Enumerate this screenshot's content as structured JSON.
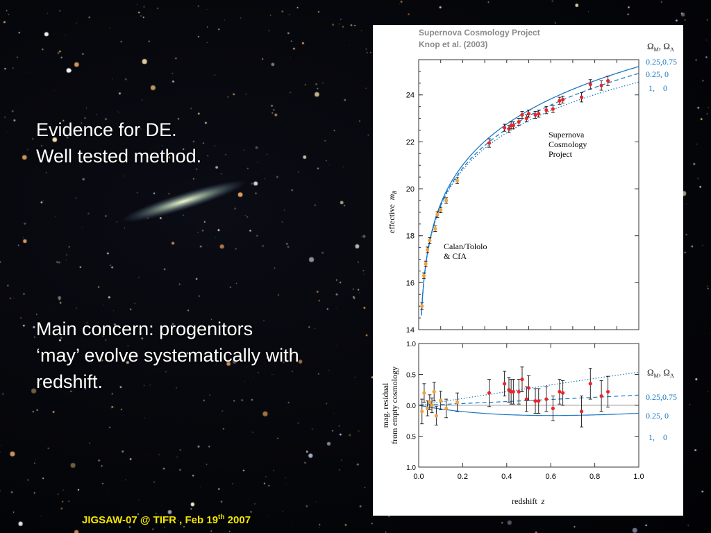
{
  "slide": {
    "text_block_1": [
      "Evidence for DE.",
      "Well tested method."
    ],
    "text_block_2": [
      "Main concern: progenitors",
      "‘may’ evolve systematically with",
      "redshift."
    ],
    "footer_main": "JIGSAW-07 @ TIFR , Feb 19",
    "footer_sup": "th",
    "footer_year": " 2007"
  },
  "figure": {
    "header_line1": "Supernova Cosmology Project",
    "header_line2": "Knop et al. (2003)",
    "colors": {
      "curve": "#1a78c2",
      "sn_point": "#e8262a",
      "low_z_point": "#f2a23a",
      "legend_text": "#1a78c2",
      "header_text": "#8a8a8a"
    }
  },
  "chart_data": [
    {
      "type": "scatter",
      "title": "",
      "xlabel": "",
      "ylabel": "effective m_B",
      "ylabel_main": "effective",
      "ylabel_sym": "m",
      "ylabel_sub": "B",
      "xlim": [
        0,
        1.0
      ],
      "ylim": [
        14,
        25.5
      ],
      "yticks": [
        14,
        16,
        18,
        20,
        22,
        24
      ],
      "legend_title_main": "Ω",
      "legend_title_sub1": "M",
      "legend_title_sep": ",  Ω",
      "legend_title_sub2": "Λ",
      "annotation_scp": [
        "Supernova",
        "Cosmology",
        "Project"
      ],
      "annotation_calan": [
        "Calan/Tololo",
        "& CfA"
      ],
      "series": [
        {
          "name": "0.25,0.75",
          "style": "solid"
        },
        {
          "name": "0.25, 0",
          "style": "dashed"
        },
        {
          "name": "1,    0",
          "style": "dotted"
        }
      ],
      "low_z_points": [
        {
          "x": 0.015,
          "y": 15.0,
          "err": 0.15
        },
        {
          "x": 0.024,
          "y": 16.3,
          "err": 0.12
        },
        {
          "x": 0.032,
          "y": 16.8,
          "err": 0.12
        },
        {
          "x": 0.04,
          "y": 17.4,
          "err": 0.12
        },
        {
          "x": 0.05,
          "y": 17.8,
          "err": 0.12
        },
        {
          "x": 0.075,
          "y": 18.3,
          "err": 0.12
        },
        {
          "x": 0.085,
          "y": 18.9,
          "err": 0.12
        },
        {
          "x": 0.1,
          "y": 19.1,
          "err": 0.12
        },
        {
          "x": 0.125,
          "y": 19.5,
          "err": 0.12
        },
        {
          "x": 0.175,
          "y": 20.35,
          "err": 0.12
        }
      ],
      "high_z_points": [
        {
          "x": 0.32,
          "y": 21.95,
          "err": 0.18
        },
        {
          "x": 0.39,
          "y": 22.6,
          "err": 0.15
        },
        {
          "x": 0.41,
          "y": 22.55,
          "err": 0.15
        },
        {
          "x": 0.42,
          "y": 22.7,
          "err": 0.15
        },
        {
          "x": 0.43,
          "y": 22.7,
          "err": 0.15
        },
        {
          "x": 0.455,
          "y": 22.85,
          "err": 0.15
        },
        {
          "x": 0.47,
          "y": 23.15,
          "err": 0.15
        },
        {
          "x": 0.49,
          "y": 23.0,
          "err": 0.15
        },
        {
          "x": 0.5,
          "y": 23.2,
          "err": 0.15
        },
        {
          "x": 0.53,
          "y": 23.15,
          "err": 0.15
        },
        {
          "x": 0.545,
          "y": 23.2,
          "err": 0.15
        },
        {
          "x": 0.58,
          "y": 23.35,
          "err": 0.15
        },
        {
          "x": 0.61,
          "y": 23.4,
          "err": 0.15
        },
        {
          "x": 0.64,
          "y": 23.75,
          "err": 0.15
        },
        {
          "x": 0.655,
          "y": 23.8,
          "err": 0.15
        },
        {
          "x": 0.74,
          "y": 23.9,
          "err": 0.2
        },
        {
          "x": 0.78,
          "y": 24.45,
          "err": 0.2
        },
        {
          "x": 0.83,
          "y": 24.4,
          "err": 0.2
        },
        {
          "x": 0.86,
          "y": 24.6,
          "err": 0.2
        }
      ]
    },
    {
      "type": "scatter",
      "title": "",
      "xlabel": "redshift z",
      "xlabel_main": "redshift",
      "xlabel_sym": "z",
      "ylabel": [
        "mag. residual",
        "from empty cosmology"
      ],
      "xlim": [
        0,
        1.0
      ],
      "ylim": [
        -1.0,
        1.0
      ],
      "xticks": [
        0.0,
        0.2,
        0.4,
        0.6,
        0.8,
        1.0
      ],
      "xticklabels": [
        "0.0",
        "0.2",
        "0.4",
        "0.6",
        "0.8",
        "1.0"
      ],
      "yticks": [
        1.0,
        0.5,
        0.0,
        -0.5,
        -1.0
      ],
      "yticklabels": [
        "1.0",
        "0.5",
        "0.0",
        "0.5",
        "1.0"
      ],
      "legend_title_main": "Ω",
      "legend_title_sub1": "M",
      "legend_title_sep": ",  Ω",
      "legend_title_sub2": "Λ",
      "series": [
        {
          "name": "0.25,0.75",
          "style": "solid"
        },
        {
          "name": "0.25, 0",
          "style": "dashed"
        },
        {
          "name": "1,    0",
          "style": "dotted"
        }
      ],
      "low_z_points": [
        {
          "x": 0.015,
          "y": -0.1,
          "err": 0.2
        },
        {
          "x": 0.025,
          "y": 0.2,
          "err": 0.15
        },
        {
          "x": 0.04,
          "y": -0.05,
          "err": 0.12
        },
        {
          "x": 0.05,
          "y": 0.05,
          "err": 0.12
        },
        {
          "x": 0.06,
          "y": 0.0,
          "err": 0.12
        },
        {
          "x": 0.07,
          "y": 0.22,
          "err": 0.15
        },
        {
          "x": 0.08,
          "y": -0.17,
          "err": 0.15
        },
        {
          "x": 0.1,
          "y": 0.08,
          "err": 0.15
        },
        {
          "x": 0.125,
          "y": -0.05,
          "err": 0.15
        },
        {
          "x": 0.175,
          "y": 0.05,
          "err": 0.15
        }
      ],
      "high_z_points": [
        {
          "x": 0.32,
          "y": 0.2,
          "err": 0.22
        },
        {
          "x": 0.39,
          "y": 0.35,
          "err": 0.2
        },
        {
          "x": 0.41,
          "y": 0.25,
          "err": 0.2
        },
        {
          "x": 0.42,
          "y": 0.22,
          "err": 0.2
        },
        {
          "x": 0.43,
          "y": 0.22,
          "err": 0.2
        },
        {
          "x": 0.455,
          "y": 0.22,
          "err": 0.2
        },
        {
          "x": 0.47,
          "y": 0.42,
          "err": 0.2
        },
        {
          "x": 0.49,
          "y": 0.1,
          "err": 0.2
        },
        {
          "x": 0.5,
          "y": 0.28,
          "err": 0.2
        },
        {
          "x": 0.53,
          "y": 0.07,
          "err": 0.2
        },
        {
          "x": 0.545,
          "y": 0.07,
          "err": 0.2
        },
        {
          "x": 0.58,
          "y": 0.1,
          "err": 0.2
        },
        {
          "x": 0.61,
          "y": -0.05,
          "err": 0.2
        },
        {
          "x": 0.64,
          "y": 0.22,
          "err": 0.2
        },
        {
          "x": 0.655,
          "y": 0.2,
          "err": 0.2
        },
        {
          "x": 0.74,
          "y": -0.1,
          "err": 0.25
        },
        {
          "x": 0.78,
          "y": 0.35,
          "err": 0.25
        },
        {
          "x": 0.83,
          "y": 0.15,
          "err": 0.25
        },
        {
          "x": 0.86,
          "y": 0.22,
          "err": 0.25
        }
      ]
    }
  ]
}
